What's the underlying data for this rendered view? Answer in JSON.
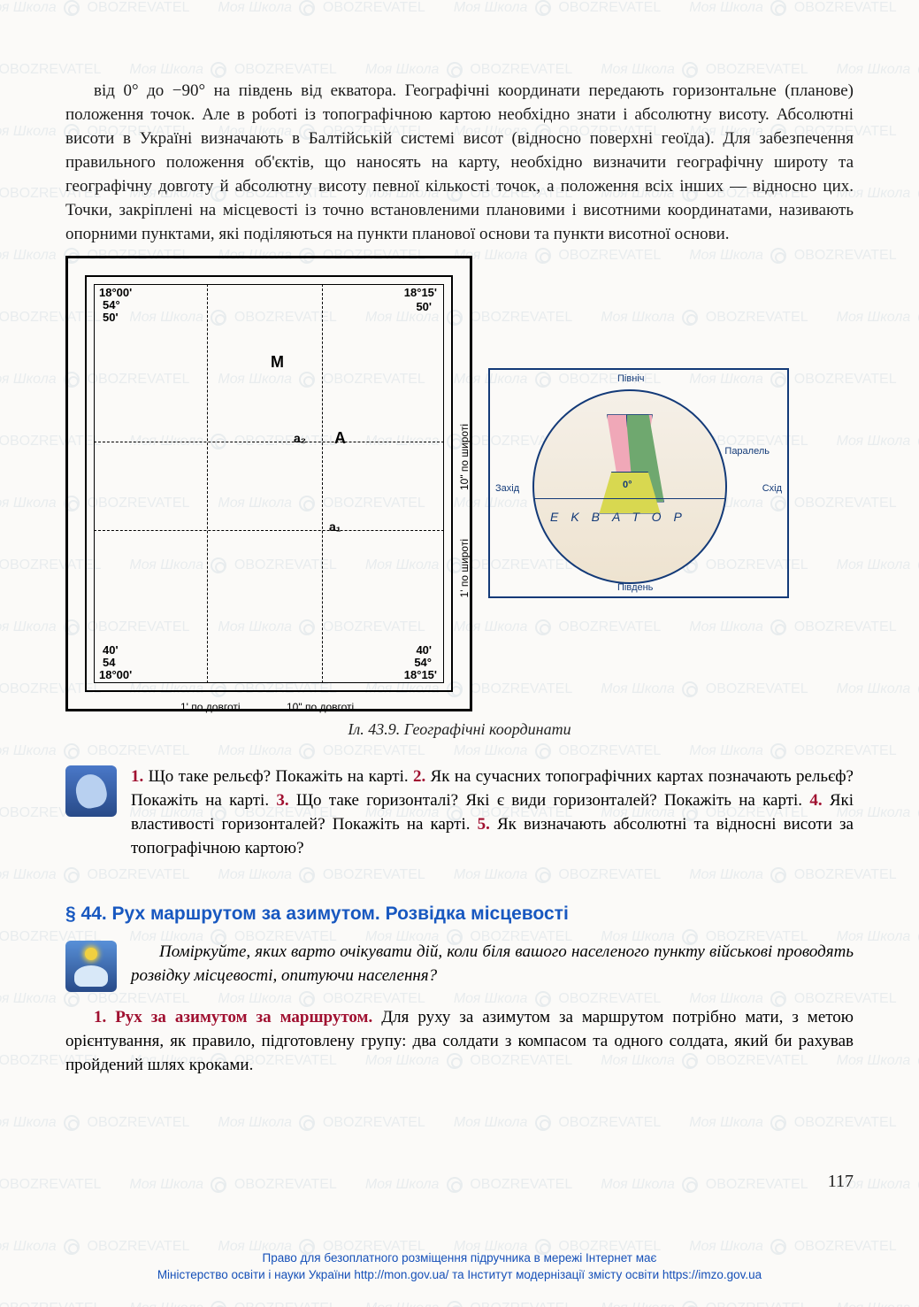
{
  "watermark": {
    "text_a": "Моя Школа",
    "text_b": "OBOZREVATEL",
    "color": "#4a7a9a",
    "opacity": 0.1
  },
  "body_paragraph": "від 0° до −90° на південь від екватора. Географічні координати передають горизонтальне (планове) положення точок. Але в роботі із топографічною картою необхідно знати і абсолютну висоту. Абсолютні висоти в Україні визначають в Балтійській системі висот (відносно поверхні геоїда). Для забезпечення правильного положення об'єктів, що наносять на карту, необхідно визначити географічну широту та географічну довготу й абсолютну висоту певної кількості точок, а положення всіх інших — відносно цих. Точки, закріплені на місцевості із точно встановленими плановими і висотними координатами, називають опорними пунктами, які поділяються на пункти планової основи та пункти висотної основи.",
  "figure": {
    "caption": "Іл. 43.9. Географічні координати",
    "left_grid": {
      "tl_deg": "18°00'",
      "tl_min1": "54°",
      "tl_min2": "50'",
      "tr_deg": "18°15'",
      "tr_min": "50'",
      "bl_deg": "18°00'",
      "bl_min1": "54",
      "bl_min2": "40'",
      "br_deg": "18°15'",
      "br_min1": "54°",
      "br_min2": "40'",
      "M": "M",
      "A": "A",
      "a1": "a₁",
      "a2": "a₂",
      "x_label1": "1' по довготі",
      "x_label2": "10\" по довготі",
      "y_label1": "10\" по широті",
      "y_label2": "1' по широті",
      "frame_color": "#000000",
      "dash_color": "#000000"
    },
    "globe": {
      "top": "Північ",
      "bottom": "Південь",
      "left": "Захід",
      "right": "Схід",
      "parallel": "Паралель",
      "letters": [
        "E",
        "K",
        "B",
        "A",
        "T",
        "O",
        "P"
      ],
      "zero": "0°",
      "frame_color": "#133a78",
      "slice_pink": "#f0a8b8",
      "slice_green": "#6fa86f",
      "slice_yellow": "#d8d850",
      "globe_fill": "#eee3d0"
    }
  },
  "questions": {
    "q1_num": "1.",
    "q1": " Що таке рельєф? Покажіть на карті. ",
    "q2_num": "2.",
    "q2": " Як на сучасних топографічних картах позначають рельєф? Покажіть на карті. ",
    "q3_num": "3.",
    "q3": " Що таке горизонталі? Які є види горизонталей? Покажіть на карті. ",
    "q4_num": "4.",
    "q4": " Які властивості горизонталей? Покажіть на карті. ",
    "q5_num": "5.",
    "q5": " Як визначають абсолютні та відносні висоти за топографічною картою?"
  },
  "section": {
    "title": "§ 44. Рух маршрутом за азимутом. Розвідка місцевості"
  },
  "reflect": {
    "text": "Поміркуйте, яких варто очікувати дій, коли біля вашого населеного пункту військові проводять розвідку місцевості, опитуючи населення?"
  },
  "subsection": {
    "num": "1.",
    "title": " Рух за азимутом за маршрутом.",
    "text": " Для руху за азимутом за маршрутом потрібно мати, з метою орієнтування, як правило, підготовлену групу: два солдати з компасом та одного солдата, який би рахував пройдений шлях кроками."
  },
  "page_number": "117",
  "footer": {
    "line1": "Право для безоплатного розміщення підручника в мережі Інтернет має",
    "line2": "Міністерство освіти і науки України http://mon.gov.ua/ та Інститут модернізації змісту освіти https://imzo.gov.ua"
  },
  "colors": {
    "body_text": "#1a1a1a",
    "accent_red": "#a01030",
    "accent_blue": "#1858c0",
    "footer_blue": "#1650b8",
    "background": "#fbfaf8"
  }
}
